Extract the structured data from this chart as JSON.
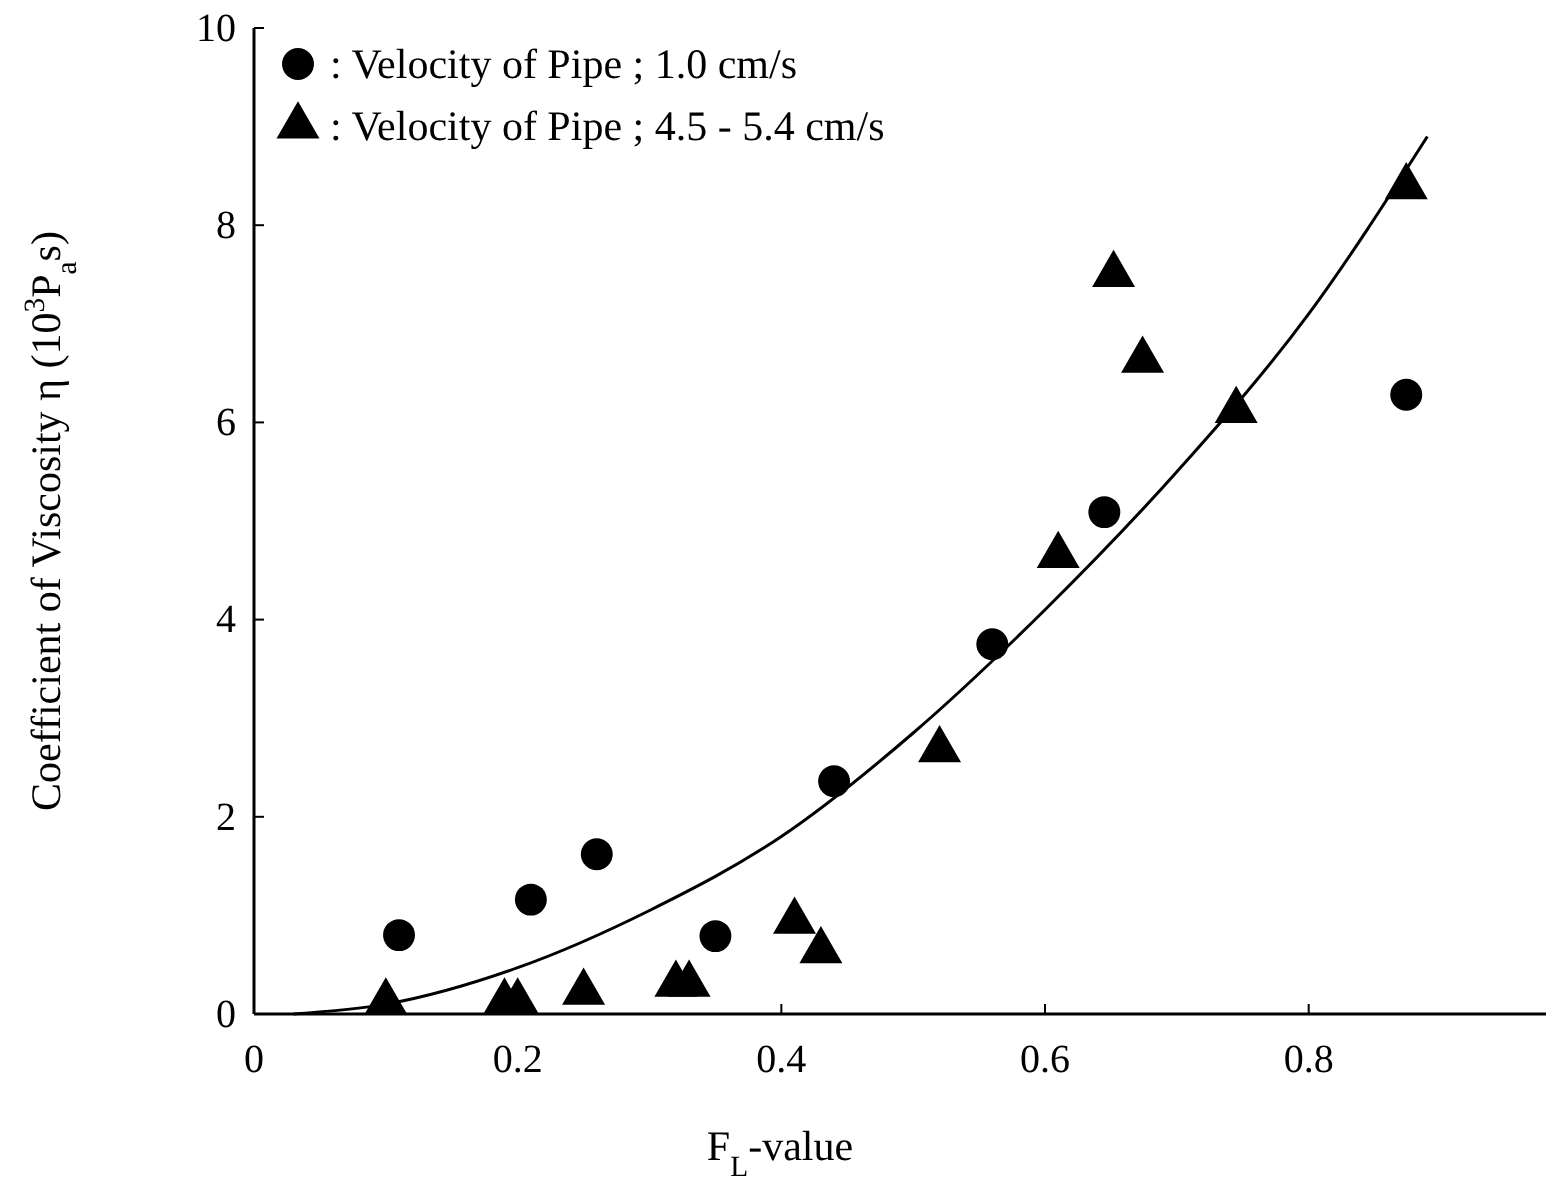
{
  "chart_data": {
    "type": "scatter",
    "xlabel": "F$_{L}$-value",
    "ylabel": "Coefficient of Viscosity η (10$^{3}$P$_{a}$s)",
    "xlim": [
      0,
      0.98
    ],
    "ylim": [
      0,
      10
    ],
    "xticks": [
      0,
      0.2,
      0.4,
      0.6,
      0.8
    ],
    "yticks": [
      0,
      2,
      4,
      6,
      8,
      10
    ],
    "grid": false,
    "legend": "top left",
    "series": [
      {
        "name": ": Velocity of Pipe ; 1.0 cm/s",
        "color": "#000000",
        "marker": "circle",
        "x": [
          0.11,
          0.21,
          0.26,
          0.35,
          0.44,
          0.56,
          0.645,
          0.874
        ],
        "values": [
          0.8,
          1.16,
          1.62,
          0.79,
          2.36,
          3.75,
          5.09,
          6.28
        ]
      },
      {
        "name": ": Velocity of Pipe ; 4.5 - 5.4 cm/s",
        "color": "#000000",
        "marker": "triangle",
        "x": [
          0.1,
          0.19,
          0.2,
          0.25,
          0.32,
          0.33,
          0.41,
          0.43,
          0.52,
          0.61,
          0.652,
          0.674,
          0.745,
          0.874
        ],
        "values": [
          0.12,
          0.12,
          0.12,
          0.22,
          0.3,
          0.3,
          0.94,
          0.64,
          2.68,
          4.65,
          7.5,
          6.63,
          6.12,
          8.39
        ]
      },
      {
        "type": "line",
        "color": "#000000",
        "x": [
          0.03,
          0.1,
          0.2,
          0.3,
          0.4,
          0.5,
          0.6,
          0.7,
          0.8,
          0.89
        ],
        "values": [
          0,
          0.1,
          0.47,
          1.05,
          1.8,
          2.85,
          4.1,
          5.5,
          7.1,
          8.9
        ]
      }
    ]
  }
}
